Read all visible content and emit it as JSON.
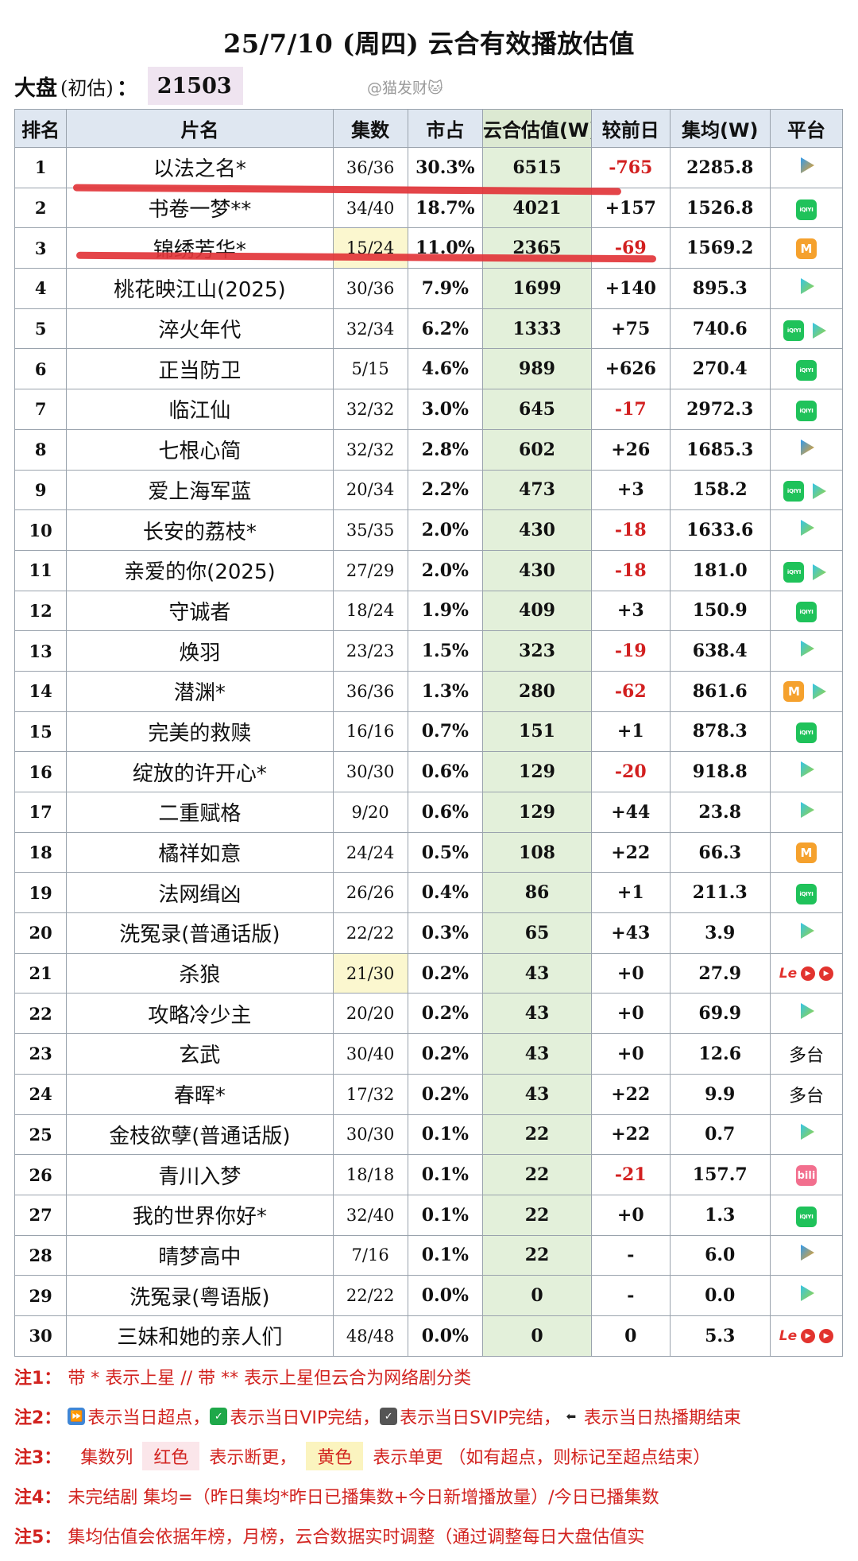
{
  "title": "25/7/10 (周四) 云合有效播放估值",
  "dapan": {
    "label": "大盘",
    "sub": "(初估)",
    "colon": "：",
    "value": "21503"
  },
  "watermark": "@猫发财🐱",
  "columns": [
    "排名",
    "片名",
    "集数",
    "市占",
    "云合估值(W)",
    "较前日",
    "集均(W)",
    "平台"
  ],
  "rows": [
    {
      "rank": "1",
      "name": "以法之名*",
      "ep": "36/36",
      "share": "30.3%",
      "val": "6515",
      "diff": "-765",
      "neg": true,
      "avg": "2285.8",
      "plat": [
        "tencent"
      ]
    },
    {
      "rank": "2",
      "name": "书卷一梦**",
      "ep": "34/40",
      "share": "18.7%",
      "val": "4021",
      "diff": "+157",
      "neg": false,
      "avg": "1526.8",
      "plat": [
        "iqiyi"
      ]
    },
    {
      "rank": "3",
      "name": "锦绣芳华*",
      "ep": "15/24",
      "share": "11.0%",
      "val": "2365",
      "diff": "-69",
      "neg": true,
      "avg": "1569.2",
      "plat": [
        "mango"
      ],
      "ep_yellow": true
    },
    {
      "rank": "4",
      "name": "桃花映江山(2025)",
      "ep": "30/36",
      "share": "7.9%",
      "val": "1699",
      "diff": "+140",
      "neg": false,
      "avg": "895.3",
      "plat": [
        "youku"
      ]
    },
    {
      "rank": "5",
      "name": "淬火年代",
      "ep": "32/34",
      "share": "6.2%",
      "val": "1333",
      "diff": "+75",
      "neg": false,
      "avg": "740.6",
      "plat": [
        "iqiyi",
        "youku"
      ]
    },
    {
      "rank": "6",
      "name": "正当防卫",
      "ep": "5/15",
      "share": "4.6%",
      "val": "989",
      "diff": "+626",
      "neg": false,
      "avg": "270.4",
      "plat": [
        "iqiyi"
      ]
    },
    {
      "rank": "7",
      "name": "临江仙",
      "ep": "32/32",
      "share": "3.0%",
      "val": "645",
      "diff": "-17",
      "neg": true,
      "avg": "2972.3",
      "plat": [
        "iqiyi"
      ]
    },
    {
      "rank": "8",
      "name": "七根心简",
      "ep": "32/32",
      "share": "2.8%",
      "val": "602",
      "diff": "+26",
      "neg": false,
      "avg": "1685.3",
      "plat": [
        "tencent"
      ]
    },
    {
      "rank": "9",
      "name": "爱上海军蓝",
      "ep": "20/34",
      "share": "2.2%",
      "val": "473",
      "diff": "+3",
      "neg": false,
      "avg": "158.2",
      "plat": [
        "iqiyi",
        "youku"
      ]
    },
    {
      "rank": "10",
      "name": "长安的荔枝*",
      "ep": "35/35",
      "share": "2.0%",
      "val": "430",
      "diff": "-18",
      "neg": true,
      "avg": "1633.6",
      "plat": [
        "youku"
      ]
    },
    {
      "rank": "11",
      "name": "亲爱的你(2025)",
      "ep": "27/29",
      "share": "2.0%",
      "val": "430",
      "diff": "-18",
      "neg": true,
      "avg": "181.0",
      "plat": [
        "iqiyi",
        "youku"
      ]
    },
    {
      "rank": "12",
      "name": "守诚者",
      "ep": "18/24",
      "share": "1.9%",
      "val": "409",
      "diff": "+3",
      "neg": false,
      "avg": "150.9",
      "plat": [
        "iqiyi"
      ]
    },
    {
      "rank": "13",
      "name": "焕羽",
      "ep": "23/23",
      "share": "1.5%",
      "val": "323",
      "diff": "-19",
      "neg": true,
      "avg": "638.4",
      "plat": [
        "youku"
      ]
    },
    {
      "rank": "14",
      "name": "潜渊*",
      "ep": "36/36",
      "share": "1.3%",
      "val": "280",
      "diff": "-62",
      "neg": true,
      "avg": "861.6",
      "plat": [
        "mango",
        "youku"
      ]
    },
    {
      "rank": "15",
      "name": "完美的救赎",
      "ep": "16/16",
      "share": "0.7%",
      "val": "151",
      "diff": "+1",
      "neg": false,
      "avg": "878.3",
      "plat": [
        "iqiyi"
      ]
    },
    {
      "rank": "16",
      "name": "绽放的许开心*",
      "ep": "30/30",
      "share": "0.6%",
      "val": "129",
      "diff": "-20",
      "neg": true,
      "avg": "918.8",
      "plat": [
        "youku"
      ]
    },
    {
      "rank": "17",
      "name": "二重赋格",
      "ep": "9/20",
      "share": "0.6%",
      "val": "129",
      "diff": "+44",
      "neg": false,
      "avg": "23.8",
      "plat": [
        "youku"
      ]
    },
    {
      "rank": "18",
      "name": "橘祥如意",
      "ep": "24/24",
      "share": "0.5%",
      "val": "108",
      "diff": "+22",
      "neg": false,
      "avg": "66.3",
      "plat": [
        "mango"
      ]
    },
    {
      "rank": "19",
      "name": "法网缉凶",
      "ep": "26/26",
      "share": "0.4%",
      "val": "86",
      "diff": "+1",
      "neg": false,
      "avg": "211.3",
      "plat": [
        "iqiyi"
      ]
    },
    {
      "rank": "20",
      "name": "洗冤录(普通话版)",
      "ep": "22/22",
      "share": "0.3%",
      "val": "65",
      "diff": "+43",
      "neg": false,
      "avg": "3.9",
      "plat": [
        "youku"
      ]
    },
    {
      "rank": "21",
      "name": "杀狼",
      "ep": "21/30",
      "share": "0.2%",
      "val": "43",
      "diff": "+0",
      "neg": false,
      "avg": "27.9",
      "plat": [
        "le",
        "red",
        "red"
      ],
      "ep_yellow": true
    },
    {
      "rank": "22",
      "name": "攻略冷少主",
      "ep": "20/20",
      "share": "0.2%",
      "val": "43",
      "diff": "+0",
      "neg": false,
      "avg": "69.9",
      "plat": [
        "youku"
      ]
    },
    {
      "rank": "23",
      "name": "玄武",
      "ep": "30/40",
      "share": "0.2%",
      "val": "43",
      "diff": "+0",
      "neg": false,
      "avg": "12.6",
      "plat": [
        "multi"
      ]
    },
    {
      "rank": "24",
      "name": "春晖*",
      "ep": "17/32",
      "share": "0.2%",
      "val": "43",
      "diff": "+22",
      "neg": false,
      "avg": "9.9",
      "plat": [
        "multi"
      ]
    },
    {
      "rank": "25",
      "name": "金枝欲孽(普通话版)",
      "ep": "30/30",
      "share": "0.1%",
      "val": "22",
      "diff": "+22",
      "neg": false,
      "avg": "0.7",
      "plat": [
        "youku"
      ]
    },
    {
      "rank": "26",
      "name": "青川入梦",
      "ep": "18/18",
      "share": "0.1%",
      "val": "22",
      "diff": "-21",
      "neg": true,
      "avg": "157.7",
      "plat": [
        "bili"
      ]
    },
    {
      "rank": "27",
      "name": "我的世界你好*",
      "ep": "32/40",
      "share": "0.1%",
      "val": "22",
      "diff": "+0",
      "neg": false,
      "avg": "1.3",
      "plat": [
        "iqiyi"
      ]
    },
    {
      "rank": "28",
      "name": "晴梦高中",
      "ep": "7/16",
      "share": "0.1%",
      "val": "22",
      "diff": "-",
      "neg": false,
      "avg": "6.0",
      "plat": [
        "tencent"
      ]
    },
    {
      "rank": "29",
      "name": "洗冤录(粤语版)",
      "ep": "22/22",
      "share": "0.0%",
      "val": "0",
      "diff": "-",
      "neg": false,
      "avg": "0.0",
      "plat": [
        "youku"
      ]
    },
    {
      "rank": "30",
      "name": "三妹和她的亲人们",
      "ep": "48/48",
      "share": "0.0%",
      "val": "0",
      "diff": "0",
      "neg": false,
      "avg": "5.3",
      "plat": [
        "le",
        "red",
        "red"
      ]
    }
  ],
  "platform_labels": {
    "multi": "多台",
    "iqiyi": "iQIYI",
    "mango": "M",
    "bili": "bili",
    "le": "Le"
  },
  "notes": {
    "n1": {
      "label": "注1：",
      "text": "带 * 表示上星 // 带 ** 表示上星但云合为网络剧分类"
    },
    "n2": {
      "label": "注2：",
      "a": "表示当日超点，",
      "b": "表示当日VIP完结，",
      "c": "表示当日SVIP完结，",
      "d": "表示当日热播期结束"
    },
    "n3": {
      "label": "注3：",
      "col": "集数列",
      "red": "红色",
      "mid": "表示断更，",
      "yellow": "黄色",
      "tail": "表示单更 （如有超点，则标记至超点结束）"
    },
    "n4": {
      "label": "注4：",
      "text": "未完结剧 集均=（昨日集均*昨日已播集数+今日新增播放量）/今日已播集数"
    },
    "n5": {
      "label": "注5：",
      "text": "集均估值会依据年榜，月榜，云合数据实时调整（通过调整每日大盘估值实"
    }
  },
  "colors": {
    "negative": "#d21f1f",
    "valueColumnBg": "#e3f0da",
    "headerBg": "#dfe7f1",
    "noteRed": "#d2231f",
    "strike": "#e2353a"
  }
}
